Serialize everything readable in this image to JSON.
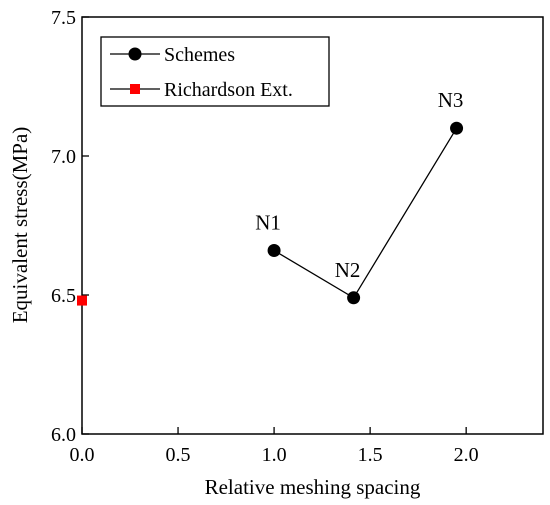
{
  "chart_data": {
    "type": "scatter",
    "title": "",
    "xlabel": "Relative meshing spacing",
    "ylabel": "Equivalent stress(MPa)",
    "xlim": [
      0.0,
      2.4
    ],
    "ylim": [
      6.0,
      7.5
    ],
    "xticks": [
      "0.0",
      "0.5",
      "1.0",
      "1.5",
      "2.0"
    ],
    "xtick_values": [
      0.0,
      0.5,
      1.0,
      1.5,
      2.0
    ],
    "yticks": [
      "6.0",
      "6.5",
      "7.0",
      "7.5"
    ],
    "ytick_values": [
      6.0,
      6.5,
      7.0,
      7.5
    ],
    "grid": false,
    "legend": "top-left",
    "series": [
      {
        "name": "Schemes",
        "marker": "circle",
        "line": true,
        "color": "#000000",
        "points": [
          {
            "x": 1.0,
            "y": 6.66,
            "label": "N1"
          },
          {
            "x": 1.414,
            "y": 6.49,
            "label": "N2"
          },
          {
            "x": 1.95,
            "y": 7.1,
            "label": "N3"
          }
        ]
      },
      {
        "name": "Richardson Ext.",
        "marker": "square",
        "line": false,
        "color": "#ff0000",
        "points": [
          {
            "x": 0.0,
            "y": 6.48
          }
        ]
      }
    ]
  }
}
